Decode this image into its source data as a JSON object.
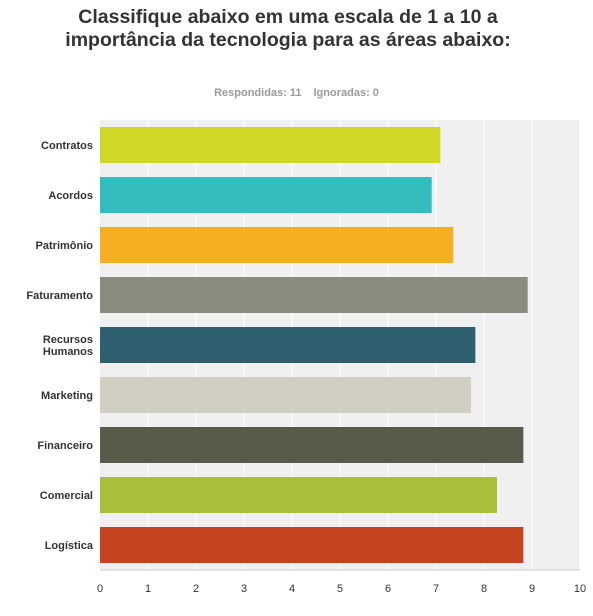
{
  "header": {
    "title": "Classifique abaixo em uma escala de 1 a 10 a importância da tecnologia para as áreas abaixo:",
    "answered": "Respondidas: 11",
    "skipped": "Ignoradas: 0"
  },
  "chart_data": {
    "type": "bar",
    "orientation": "horizontal",
    "title": "Classifique abaixo em uma escala de 1 a 10 a importância da tecnologia para as áreas abaixo:",
    "categories": [
      "Contratos",
      "Acordos",
      "Patrimônio",
      "Faturamento",
      "Recursos Humanos",
      "Marketing",
      "Financeiro",
      "Comercial",
      "Logística"
    ],
    "values": [
      7.09,
      6.91,
      7.36,
      8.91,
      7.82,
      7.73,
      8.82,
      8.27,
      8.82
    ],
    "colors": [
      "#cfd827",
      "#33bdbf",
      "#f6ae23",
      "#898b7c",
      "#2e5f6e",
      "#d1cec3",
      "#5a5a4b",
      "#a8bf3b",
      "#c5441f"
    ],
    "xlim": [
      0,
      10
    ],
    "xticks": [
      0,
      1,
      2,
      3,
      4,
      5,
      6,
      7,
      8,
      9,
      10
    ],
    "grid": true,
    "plot_background": "#f0f0f0"
  }
}
